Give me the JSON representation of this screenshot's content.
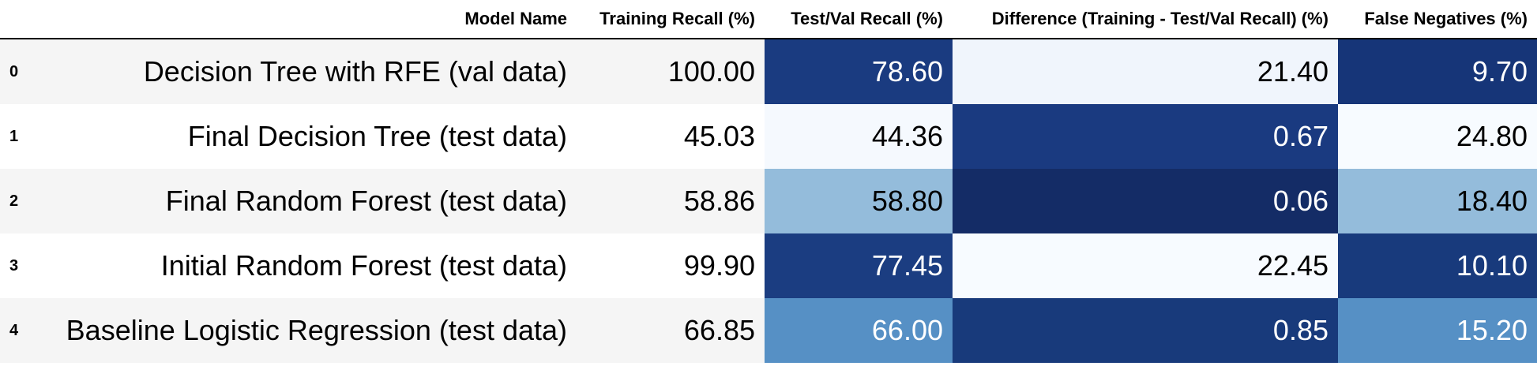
{
  "columns": {
    "index": "",
    "model_name": "Model Name",
    "training_recall": "Training Recall (%)",
    "test_val_recall": "Test/Val Recall (%)",
    "difference": "Difference (Training - Test/Val Recall) (%)",
    "false_negatives": "False Negatives (%)"
  },
  "rows": [
    {
      "index": "0",
      "model_name": "Decision Tree with RFE (val data)",
      "training_recall": "100.00",
      "test_val_recall": "78.60",
      "difference": "21.40",
      "false_negatives": "9.70"
    },
    {
      "index": "1",
      "model_name": "Final Decision Tree (test data)",
      "training_recall": "45.03",
      "test_val_recall": "44.36",
      "difference": "0.67",
      "false_negatives": "24.80"
    },
    {
      "index": "2",
      "model_name": "Final Random Forest (test data)",
      "training_recall": "58.86",
      "test_val_recall": "58.80",
      "difference": "0.06",
      "false_negatives": "18.40"
    },
    {
      "index": "3",
      "model_name": "Initial Random Forest (test data)",
      "training_recall": "99.90",
      "test_val_recall": "77.45",
      "difference": "22.45",
      "false_negatives": "10.10"
    },
    {
      "index": "4",
      "model_name": "Baseline Logistic Regression (test data)",
      "training_recall": "66.85",
      "test_val_recall": "66.00",
      "difference": "0.85",
      "false_negatives": "15.20"
    }
  ],
  "cell_colors": {
    "test_val_recall": [
      {
        "bg": "#1a3b80",
        "fg": "#ffffff"
      },
      {
        "bg": "#f5f9fe",
        "fg": "#000000"
      },
      {
        "bg": "#94bcdb",
        "fg": "#000000"
      },
      {
        "bg": "#1b3d81",
        "fg": "#ffffff"
      },
      {
        "bg": "#5690c5",
        "fg": "#ffffff"
      }
    ],
    "difference": [
      {
        "bg": "#f0f5fc",
        "fg": "#000000"
      },
      {
        "bg": "#1a3a80",
        "fg": "#ffffff"
      },
      {
        "bg": "#142c66",
        "fg": "#ffffff"
      },
      {
        "bg": "#f7fbff",
        "fg": "#000000"
      },
      {
        "bg": "#183a7b",
        "fg": "#ffffff"
      }
    ],
    "false_negatives": [
      {
        "bg": "#163578",
        "fg": "#ffffff"
      },
      {
        "bg": "#f7fbff",
        "fg": "#000000"
      },
      {
        "bg": "#94bcdb",
        "fg": "#000000"
      },
      {
        "bg": "#183a7c",
        "fg": "#ffffff"
      },
      {
        "bg": "#5690c5",
        "fg": "#ffffff"
      }
    ]
  }
}
